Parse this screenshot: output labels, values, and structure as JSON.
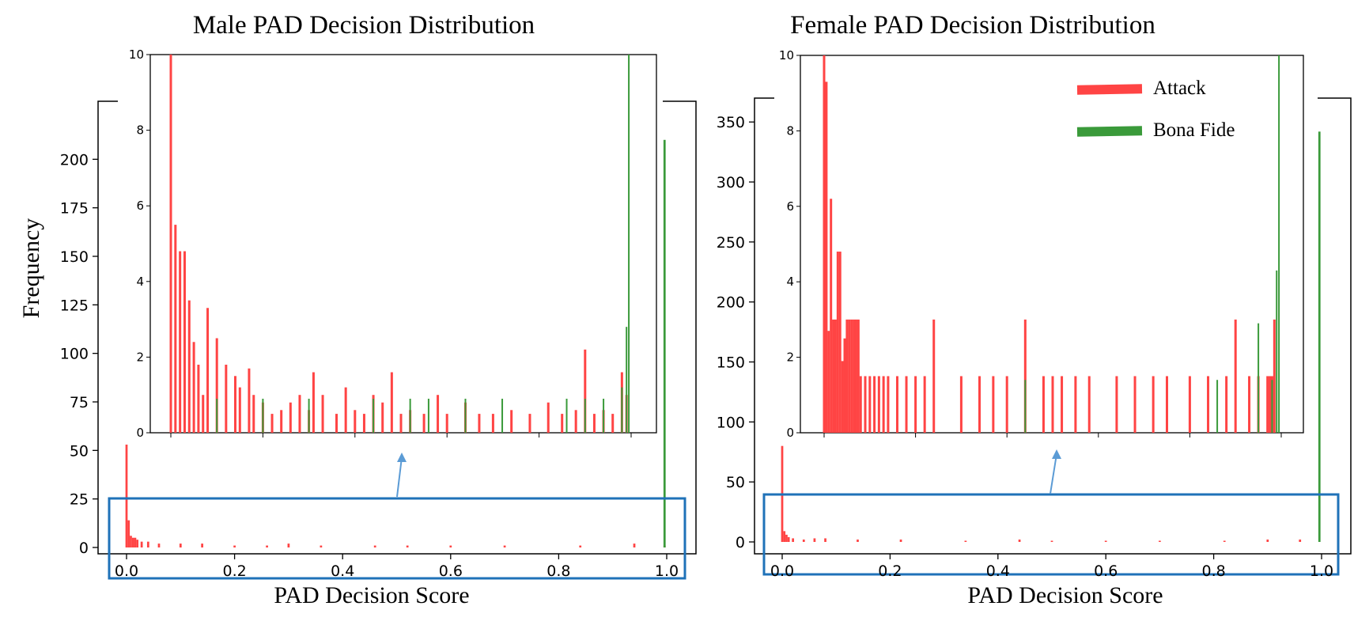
{
  "colors": {
    "attack": "#ff4444",
    "bona_fide": "#3a9a3a",
    "highlight_box": "#1f72b8",
    "arrow": "#5b9bd5"
  },
  "left": {
    "title": "Male PAD Decision Distribution",
    "xlabel": "PAD Decision Score",
    "ylabel": "Frequency"
  },
  "right": {
    "title": "Female PAD Decision Distribution",
    "xlabel": "PAD Decision Score"
  },
  "legend": {
    "attack": "Attack",
    "bona_fide": "Bona Fide"
  },
  "chart_data": [
    {
      "type": "bar",
      "title": "Male PAD Decision Distribution",
      "xlabel": "PAD Decision Score",
      "ylabel": "Frequency",
      "xlim": [
        -0.05,
        1.05
      ],
      "ylim": [
        0,
        225
      ],
      "xticks": [
        "0.0",
        "0.2",
        "0.4",
        "0.6",
        "0.8",
        "1.0"
      ],
      "yticks": [
        "0",
        "25",
        "50",
        "75",
        "100",
        "125",
        "150",
        "175",
        "200"
      ],
      "bin_width": 0.004,
      "series": [
        {
          "name": "Attack",
          "x": [
            0.0,
            0.004,
            0.008,
            0.012,
            0.016,
            0.02,
            0.028,
            0.04,
            0.06,
            0.1,
            0.14,
            0.2,
            0.26,
            0.3,
            0.36,
            0.46,
            0.52,
            0.6,
            0.7,
            0.84,
            0.94,
            0.996
          ],
          "values": [
            53,
            14,
            6,
            5,
            5,
            4,
            3,
            3,
            2,
            2,
            2,
            1,
            1,
            2,
            1,
            1,
            1,
            1,
            1,
            1,
            2,
            1
          ]
        },
        {
          "name": "Bona Fide",
          "x": [
            0.996
          ],
          "values": [
            210
          ]
        }
      ],
      "inset": {
        "xlim": [
          -0.005,
          1.0
        ],
        "ylim": [
          0,
          10
        ],
        "yticks": [
          "0",
          "2",
          "4",
          "6",
          "8",
          "10"
        ],
        "attack": [
          [
            0.0,
            10
          ],
          [
            0.01,
            5.5
          ],
          [
            0.02,
            4.8
          ],
          [
            0.03,
            4.8
          ],
          [
            0.04,
            3.5
          ],
          [
            0.05,
            2.4
          ],
          [
            0.06,
            1.8
          ],
          [
            0.07,
            1.0
          ],
          [
            0.08,
            3.3
          ],
          [
            0.1,
            2.5
          ],
          [
            0.12,
            1.8
          ],
          [
            0.14,
            1.5
          ],
          [
            0.15,
            1.2
          ],
          [
            0.17,
            1.7
          ],
          [
            0.18,
            1.0
          ],
          [
            0.2,
            0.8
          ],
          [
            0.22,
            0.5
          ],
          [
            0.24,
            0.6
          ],
          [
            0.26,
            0.8
          ],
          [
            0.28,
            1.0
          ],
          [
            0.3,
            0.6
          ],
          [
            0.31,
            1.6
          ],
          [
            0.33,
            1.0
          ],
          [
            0.36,
            0.5
          ],
          [
            0.38,
            1.2
          ],
          [
            0.4,
            0.6
          ],
          [
            0.42,
            0.5
          ],
          [
            0.44,
            1.0
          ],
          [
            0.46,
            0.8
          ],
          [
            0.48,
            1.6
          ],
          [
            0.5,
            0.5
          ],
          [
            0.52,
            0.6
          ],
          [
            0.55,
            0.5
          ],
          [
            0.58,
            1.0
          ],
          [
            0.6,
            0.5
          ],
          [
            0.64,
            0.8
          ],
          [
            0.67,
            0.5
          ],
          [
            0.7,
            0.5
          ],
          [
            0.74,
            0.6
          ],
          [
            0.78,
            0.5
          ],
          [
            0.82,
            0.8
          ],
          [
            0.85,
            0.5
          ],
          [
            0.88,
            0.6
          ],
          [
            0.9,
            2.2
          ],
          [
            0.92,
            0.5
          ],
          [
            0.94,
            0.6
          ],
          [
            0.96,
            0.5
          ],
          [
            0.98,
            1.6
          ],
          [
            0.99,
            1.0
          ]
        ],
        "bona_fide": [
          [
            0.1,
            0.9
          ],
          [
            0.2,
            0.9
          ],
          [
            0.3,
            0.9
          ],
          [
            0.44,
            0.9
          ],
          [
            0.52,
            0.9
          ],
          [
            0.56,
            0.9
          ],
          [
            0.64,
            0.9
          ],
          [
            0.72,
            0.9
          ],
          [
            0.86,
            0.9
          ],
          [
            0.9,
            0.9
          ],
          [
            0.94,
            0.9
          ],
          [
            0.98,
            1.2
          ],
          [
            0.99,
            2.8
          ],
          [
            0.995,
            10
          ]
        ]
      }
    },
    {
      "type": "bar",
      "title": "Female PAD Decision Distribution",
      "xlabel": "PAD Decision Score",
      "ylabel": "",
      "xlim": [
        -0.035,
        1.035
      ],
      "ylim": [
        0,
        362
      ],
      "xticks": [
        "0.0",
        "0.2",
        "0.4",
        "0.6",
        "0.8",
        "1.0"
      ],
      "yticks": [
        "0",
        "50",
        "100",
        "150",
        "200",
        "250",
        "300",
        "350"
      ],
      "bin_width": 0.004,
      "series": [
        {
          "name": "Attack",
          "x": [
            0.0,
            0.004,
            0.008,
            0.012,
            0.02,
            0.04,
            0.06,
            0.08,
            0.14,
            0.22,
            0.34,
            0.44,
            0.5,
            0.6,
            0.7,
            0.82,
            0.9,
            0.96
          ],
          "values": [
            80,
            9,
            6,
            4,
            3,
            2,
            3,
            3,
            2,
            2,
            1,
            2,
            1,
            1,
            1,
            1,
            2,
            2
          ]
        },
        {
          "name": "Bona Fide",
          "x": [
            0.996
          ],
          "values": [
            342
          ]
        }
      ],
      "inset": {
        "xlim": [
          -0.005,
          1.0
        ],
        "ylim": [
          0,
          10
        ],
        "yticks": [
          "0",
          "2",
          "4",
          "6",
          "8",
          "10"
        ],
        "attack": [
          [
            0.0,
            10
          ],
          [
            0.005,
            9.3
          ],
          [
            0.01,
            2.7
          ],
          [
            0.015,
            6.2
          ],
          [
            0.02,
            3.0
          ],
          [
            0.025,
            3.0
          ],
          [
            0.03,
            4.8
          ],
          [
            0.035,
            4.8
          ],
          [
            0.04,
            1.9
          ],
          [
            0.045,
            2.5
          ],
          [
            0.05,
            3.0
          ],
          [
            0.055,
            3.0
          ],
          [
            0.06,
            3.0
          ],
          [
            0.065,
            3.0
          ],
          [
            0.07,
            3.0
          ],
          [
            0.075,
            3.0
          ],
          [
            0.08,
            1.5
          ],
          [
            0.09,
            1.5
          ],
          [
            0.1,
            1.5
          ],
          [
            0.11,
            1.5
          ],
          [
            0.12,
            1.5
          ],
          [
            0.13,
            1.5
          ],
          [
            0.14,
            1.5
          ],
          [
            0.16,
            1.5
          ],
          [
            0.18,
            1.5
          ],
          [
            0.2,
            1.5
          ],
          [
            0.22,
            1.5
          ],
          [
            0.24,
            3.0
          ],
          [
            0.3,
            1.5
          ],
          [
            0.34,
            1.5
          ],
          [
            0.37,
            1.5
          ],
          [
            0.4,
            1.5
          ],
          [
            0.44,
            3.0
          ],
          [
            0.48,
            1.5
          ],
          [
            0.5,
            1.5
          ],
          [
            0.52,
            1.5
          ],
          [
            0.55,
            1.5
          ],
          [
            0.58,
            1.5
          ],
          [
            0.64,
            1.5
          ],
          [
            0.68,
            1.5
          ],
          [
            0.72,
            1.5
          ],
          [
            0.75,
            1.5
          ],
          [
            0.8,
            1.5
          ],
          [
            0.84,
            1.5
          ],
          [
            0.88,
            1.5
          ],
          [
            0.9,
            3.0
          ],
          [
            0.93,
            1.5
          ],
          [
            0.95,
            1.5
          ],
          [
            0.97,
            1.5
          ],
          [
            0.975,
            1.5
          ],
          [
            0.98,
            1.5
          ],
          [
            0.985,
            3.0
          ]
        ],
        "bona_fide": [
          [
            0.44,
            1.4
          ],
          [
            0.86,
            1.4
          ],
          [
            0.95,
            2.9
          ],
          [
            0.98,
            1.4
          ],
          [
            0.99,
            4.3
          ],
          [
            0.995,
            10
          ]
        ]
      }
    }
  ]
}
